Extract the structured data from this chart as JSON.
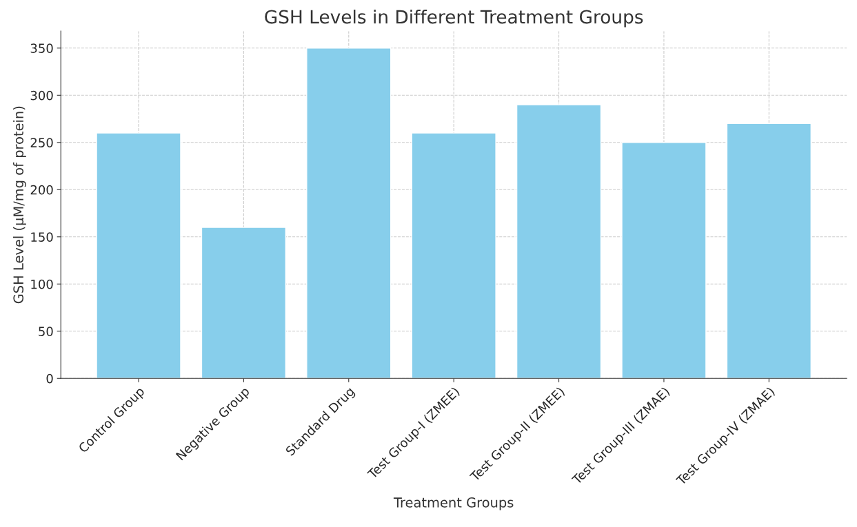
{
  "chart_data": {
    "type": "bar",
    "title": "GSH Levels in Different Treatment Groups",
    "xlabel": "Treatment Groups",
    "ylabel": "GSH Level (µM/mg of protein)",
    "categories": [
      "Control Group",
      "Negative Group",
      "Standard Drug",
      "Test Group-I (ZMEE)",
      "Test Group-II (ZMEE)",
      "Test Group-III (ZMAE)",
      "Test Group-IV (ZMAE)"
    ],
    "values": [
      260,
      160,
      350,
      260,
      290,
      250,
      270
    ],
    "color": "#87ceeb",
    "ylim": [
      0,
      368
    ],
    "yticks": [
      0,
      50,
      100,
      150,
      200,
      250,
      300,
      350
    ],
    "grid": true
  }
}
